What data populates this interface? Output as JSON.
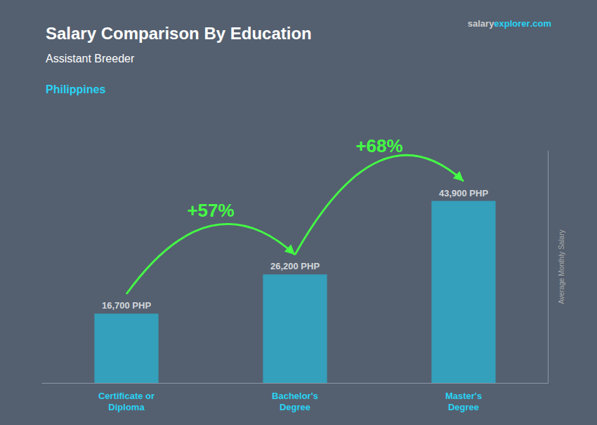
{
  "chart_data": {
    "type": "bar",
    "title": "Salary Comparison By Education",
    "subtitle": "Assistant Breeder",
    "ylabel": "Average Monthly Salary",
    "categories": [
      "Certificate or\nDiploma",
      "Bachelor's\nDegree",
      "Master's\nDegree"
    ],
    "values": [
      16700,
      26200,
      43900
    ],
    "value_labels": [
      "16,700 PHP",
      "26,200 PHP",
      "43,900 PHP"
    ],
    "data_labels": true,
    "color": "#29b6d4",
    "ylim": [
      0,
      56000
    ],
    "grid": false,
    "tick_labels": "x",
    "annotations": [
      {
        "text": "Philippines",
        "color": "#29d4f5"
      },
      {
        "parts": [
          {
            "text": "salary",
            "color": "#cccccc"
          },
          {
            "text": "explorer",
            "color": "#29d4f5"
          },
          {
            "text": ".com",
            "color": "#29d4f5"
          }
        ]
      }
    ],
    "arrows": [
      {
        "text": "+57%",
        "from": "Certificate or\nDiploma",
        "to": "Bachelor's\nDegree",
        "color": "#44ff44"
      },
      {
        "text": "+68%",
        "from": "Bachelor's\nDegree",
        "to": "Master's\nDegree",
        "color": "#44ff44"
      }
    ]
  }
}
